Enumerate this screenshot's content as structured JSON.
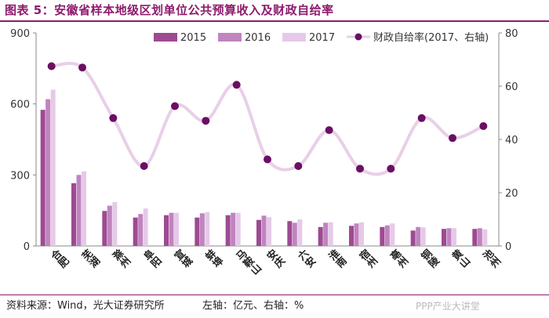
{
  "header": {
    "title": "图表 5：安徽省样本地级区划单位公共预算收入及财政自给率"
  },
  "footer": {
    "source": "资料来源：Wind，光大证券研究所",
    "axis_note": "左轴：亿元、右轴：%",
    "watermark": "PPP产业大讲堂"
  },
  "colors": {
    "accent": "#8e1b6d",
    "bar2015": "#9e4a92",
    "bar2016": "#c084bf",
    "bar2017": "#e6c9e8",
    "line": "#e9cfe8",
    "marker": "#6a0f63"
  },
  "chart_data": {
    "type": "bar",
    "categories": [
      "合肥",
      "芜湖",
      "滁州",
      "阜阳",
      "宣城",
      "蚌埠",
      "马鞍山",
      "安庆",
      "六安",
      "淮南",
      "宿州",
      "亳州",
      "铜陵",
      "黄山",
      "池州"
    ],
    "series": [
      {
        "name": "2015",
        "axis": "left",
        "values": [
          575,
          265,
          148,
          120,
          130,
          120,
          130,
          110,
          105,
          80,
          85,
          80,
          65,
          72,
          72
        ]
      },
      {
        "name": "2016",
        "axis": "left",
        "values": [
          620,
          300,
          170,
          135,
          140,
          138,
          140,
          128,
          98,
          98,
          95,
          87,
          80,
          75,
          75
        ]
      },
      {
        "name": "2017",
        "axis": "left",
        "values": [
          660,
          315,
          185,
          158,
          140,
          143,
          140,
          122,
          112,
          100,
          100,
          95,
          78,
          75,
          70
        ]
      },
      {
        "name": "财政自给率(2017、右轴)",
        "axis": "right",
        "type": "line",
        "values": [
          67.5,
          67,
          48,
          30,
          52.5,
          47,
          60.5,
          32.5,
          30,
          43.5,
          29,
          29,
          48,
          40.5,
          45
        ]
      }
    ],
    "yleft": {
      "ticks": [
        "0",
        "300",
        "600",
        "900"
      ],
      "ylim": [
        0,
        900
      ]
    },
    "yright": {
      "ticks": [
        "0",
        "20",
        "40",
        "60",
        "80"
      ],
      "ylim": [
        0,
        80
      ]
    },
    "legend_placement": "top-right"
  }
}
